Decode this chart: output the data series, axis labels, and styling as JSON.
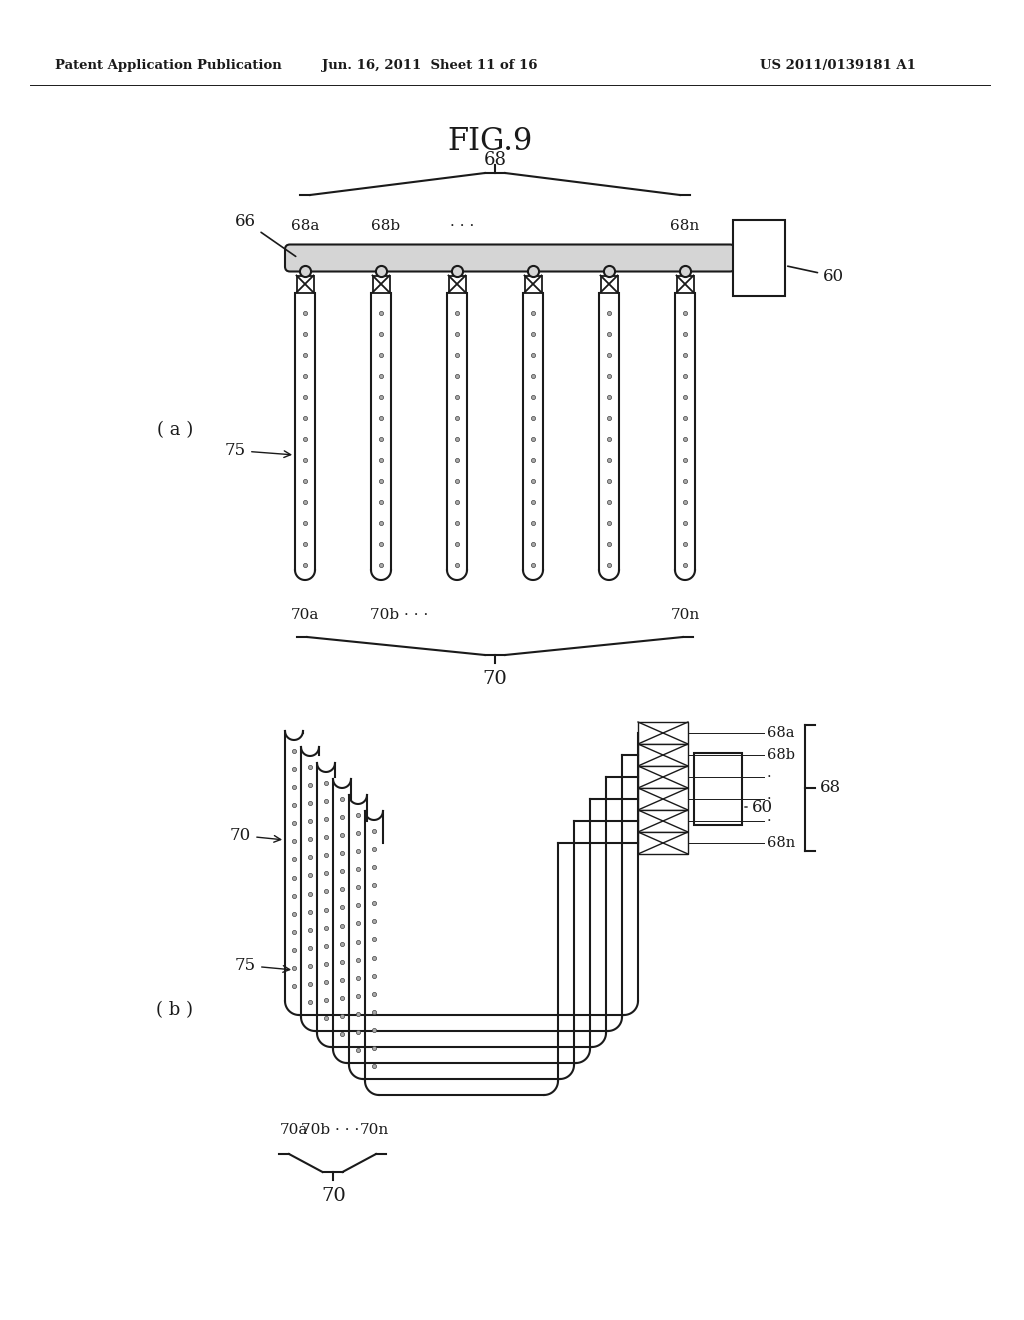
{
  "bg_color": "#ffffff",
  "line_color": "#1a1a1a",
  "header_left": "Patent Application Publication",
  "header_center": "Jun. 16, 2011  Sheet 11 of 16",
  "header_right": "US 2011/0139181 A1",
  "fig_title": "FIG.9",
  "label_a": "( a )",
  "label_b": "( b )",
  "n_tubes_a": 6,
  "n_tubes_b": 6
}
